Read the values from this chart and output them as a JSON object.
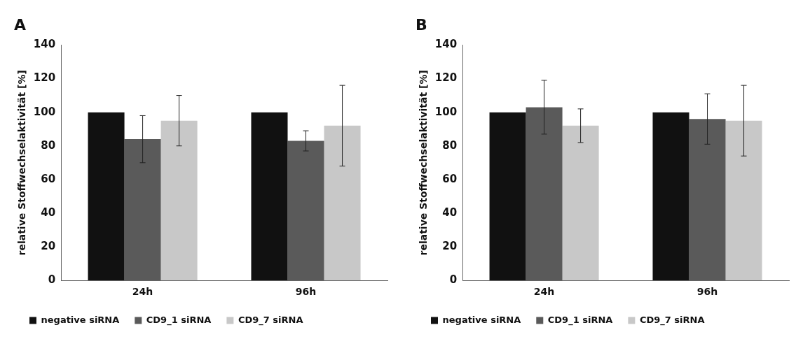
{
  "chart_data": [
    {
      "type": "bar",
      "title": "A",
      "ylabel": "relative Stoffwechselaktivität [%]",
      "categories": [
        "24h",
        "96h"
      ],
      "ylim": [
        0,
        140
      ],
      "yticks": [
        0,
        20,
        40,
        60,
        80,
        100,
        120,
        140
      ],
      "grid": false,
      "legend": "bottom",
      "series": [
        {
          "name": "negative siRNA",
          "color": "#111111",
          "values": [
            100,
            100
          ]
        },
        {
          "name": "CD9_1 siRNA",
          "color": "#5a5a5a",
          "values": [
            84,
            83
          ],
          "errors": [
            14,
            6
          ]
        },
        {
          "name": "CD9_7 siRNA",
          "color": "#c8c8c8",
          "values": [
            95,
            92
          ],
          "errors": [
            15,
            24
          ]
        }
      ]
    },
    {
      "type": "bar",
      "title": "B",
      "ylabel": "relative Stoffwechselaktivität [%]",
      "categories": [
        "24h",
        "96h"
      ],
      "ylim": [
        0,
        140
      ],
      "yticks": [
        0,
        20,
        40,
        60,
        80,
        100,
        120,
        140
      ],
      "grid": false,
      "legend": "bottom",
      "series": [
        {
          "name": "negative siRNA",
          "color": "#111111",
          "values": [
            100,
            100
          ]
        },
        {
          "name": "CD9_1 siRNA",
          "color": "#5a5a5a",
          "values": [
            103,
            96
          ],
          "errors": [
            16,
            15
          ]
        },
        {
          "name": "CD9_7 siRNA",
          "color": "#c8c8c8",
          "values": [
            92,
            95
          ],
          "errors": [
            10,
            21
          ]
        }
      ]
    }
  ]
}
